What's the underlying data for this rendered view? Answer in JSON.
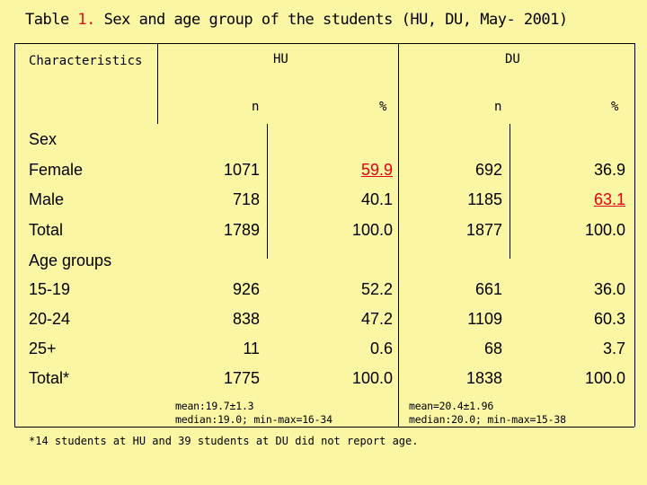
{
  "title": {
    "prefix": "Table ",
    "number": "1.",
    "text": " Sex and age group of the students (HU, DU, May- 2001)"
  },
  "header": {
    "characteristics": "Characteristics",
    "hu": "HU",
    "du": "DU",
    "n": "n",
    "pct": "%"
  },
  "sections": {
    "sex": "Sex",
    "age": "Age groups"
  },
  "rows": [
    {
      "label": "Female",
      "hu_n": "1071",
      "hu_pct": "59.9",
      "du_n": "692",
      "du_pct": "36.9"
    },
    {
      "label": "Male",
      "hu_n": "718",
      "hu_pct": "40.1",
      "du_n": "1185",
      "du_pct": "63.1"
    },
    {
      "label": "Total",
      "hu_n": "1789",
      "hu_pct": "100.0",
      "du_n": "1877",
      "du_pct": "100.0"
    },
    {
      "label": "15-19",
      "hu_n": "926",
      "hu_pct": "52.2",
      "du_n": "661",
      "du_pct": "36.0"
    },
    {
      "label": "20-24",
      "hu_n": "838",
      "hu_pct": "47.2",
      "du_n": "1109",
      "du_pct": "60.3"
    },
    {
      "label": "25+",
      "hu_n": "11",
      "hu_pct": "0.6",
      "du_n": "68",
      "du_pct": "3.7"
    },
    {
      "label": "Total*",
      "hu_n": "1775",
      "hu_pct": "100.0",
      "du_n": "1838",
      "du_pct": "100.0"
    }
  ],
  "notes": {
    "hu_line1": "mean:19.7±1.3",
    "hu_line2": "median:19.0; min-max=16-34",
    "du_line1": "mean=20.4±1.96",
    "du_line2": "median:20.0; min-max=15-38"
  },
  "footnote": "*14 students at HU and 39 students at DU did not report age.",
  "colors": {
    "background": "#fbf6a4",
    "highlight": "#e00012"
  }
}
